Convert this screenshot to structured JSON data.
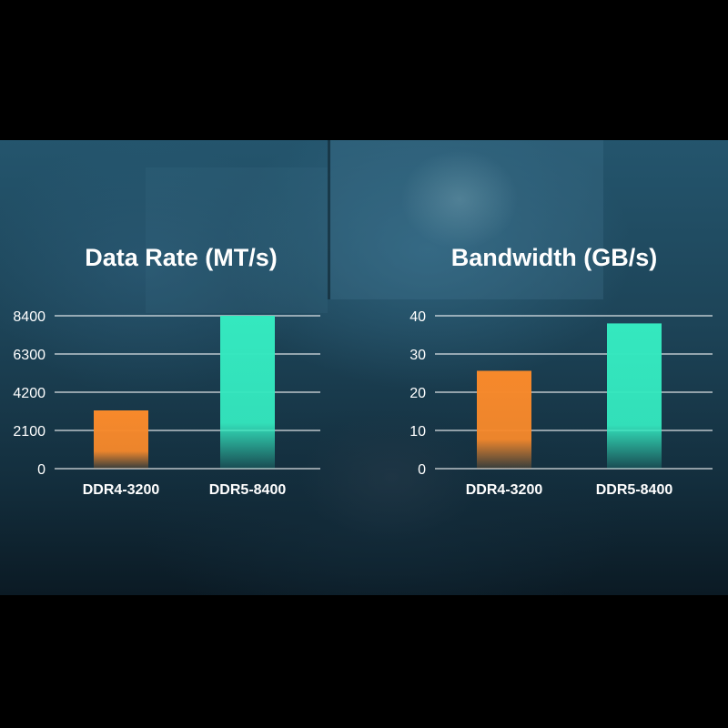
{
  "chart_data": [
    {
      "type": "bar",
      "title": "Data Rate (MT/s)",
      "categories": [
        "DDR4-3200",
        "DDR5-8400"
      ],
      "values": [
        3200,
        8400
      ],
      "yticks": [
        "0",
        "2100",
        "4200",
        "6300",
        "8400"
      ],
      "ylim": [
        0,
        8400
      ],
      "grid": true,
      "colors": [
        "#f7892b",
        "#34e8bf"
      ]
    },
    {
      "type": "bar",
      "title": "Bandwidth (GB/s)",
      "categories": [
        "DDR4-3200",
        "DDR5-8400"
      ],
      "values": [
        25.6,
        38
      ],
      "yticks": [
        "0",
        "10",
        "20",
        "30",
        "40"
      ],
      "ylim": [
        0,
        40
      ],
      "grid": true,
      "colors": [
        "#f7892b",
        "#34e8bf"
      ]
    }
  ]
}
